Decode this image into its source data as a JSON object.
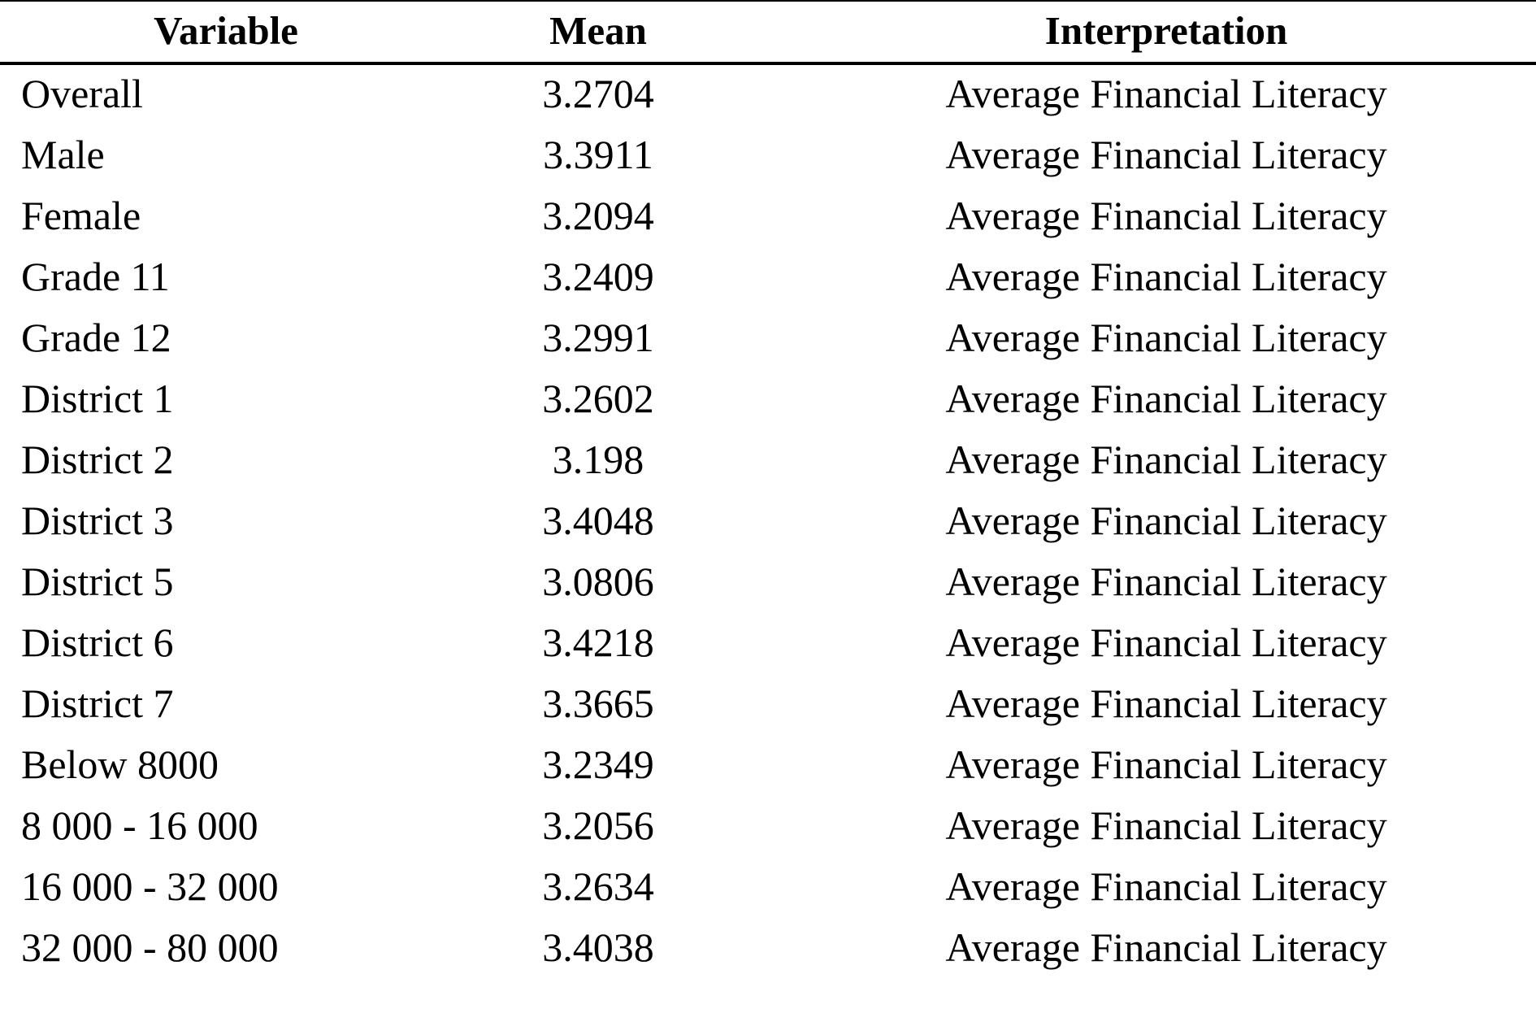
{
  "table": {
    "headers": {
      "variable": "Variable",
      "mean": "Mean",
      "interpretation": "Interpretation"
    },
    "rows": [
      {
        "variable": "Overall",
        "mean": "3.2704",
        "interpretation": "Average Financial Literacy"
      },
      {
        "variable": "Male",
        "mean": "3.3911",
        "interpretation": "Average Financial Literacy"
      },
      {
        "variable": "Female",
        "mean": "3.2094",
        "interpretation": "Average Financial Literacy"
      },
      {
        "variable": "Grade 11",
        "mean": "3.2409",
        "interpretation": "Average Financial Literacy"
      },
      {
        "variable": "Grade 12",
        "mean": "3.2991",
        "interpretation": "Average Financial Literacy"
      },
      {
        "variable": "District 1",
        "mean": "3.2602",
        "interpretation": "Average Financial Literacy"
      },
      {
        "variable": "District 2",
        "mean": "3.198",
        "interpretation": "Average Financial Literacy"
      },
      {
        "variable": "District 3",
        "mean": "3.4048",
        "interpretation": "Average Financial Literacy"
      },
      {
        "variable": "District 5",
        "mean": "3.0806",
        "interpretation": "Average Financial Literacy"
      },
      {
        "variable": "District 6",
        "mean": "3.4218",
        "interpretation": "Average Financial Literacy"
      },
      {
        "variable": "District 7",
        "mean": "3.3665",
        "interpretation": "Average Financial Literacy"
      },
      {
        "variable": "Below 8000",
        "mean": "3.2349",
        "interpretation": "Average Financial Literacy"
      },
      {
        "variable": "8 000 - 16 000",
        "mean": "3.2056",
        "interpretation": "Average Financial Literacy"
      },
      {
        "variable": "16 000 - 32 000",
        "mean": "3.2634",
        "interpretation": "Average Financial Literacy"
      },
      {
        "variable": "32 000 - 80 000",
        "mean": "3.4038",
        "interpretation": "Average Financial Literacy"
      }
    ]
  }
}
